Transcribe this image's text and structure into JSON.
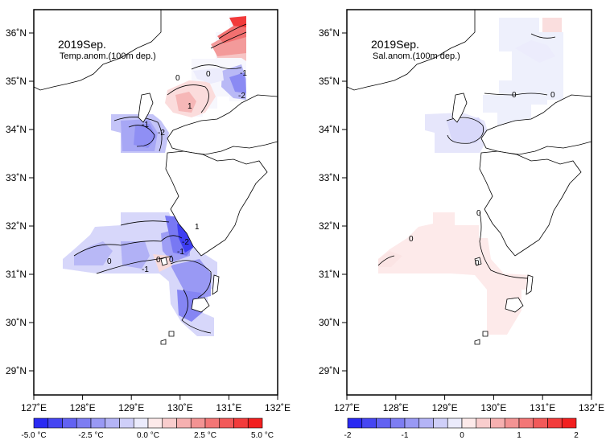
{
  "panels": [
    {
      "id": "temp",
      "title": "2019Sep.",
      "subtitle": "Temp.anom.(100m dep.)",
      "x_ticks": [
        "127˚E",
        "128˚E",
        "129˚E",
        "130˚E",
        "131˚E",
        "132˚E"
      ],
      "y_ticks": [
        "29˚N",
        "30˚N",
        "31˚N",
        "32˚N",
        "33˚N",
        "34˚N",
        "35˚N",
        "36˚N"
      ],
      "contour_labels": [
        "0",
        "0",
        "-1",
        "-2",
        "1",
        "-1",
        "-2",
        "1",
        "0",
        "0",
        "-1",
        "-2",
        "-1",
        "0"
      ],
      "colorbar": {
        "colors": [
          "#2a2af2",
          "#4646f2",
          "#6262f2",
          "#7d7df2",
          "#9999f4",
          "#b4b4f6",
          "#cfcff9",
          "#ebebfc",
          "#fdeaea",
          "#f9cdcd",
          "#f6b0b0",
          "#f39393",
          "#f37676",
          "#f25959",
          "#f23c3c",
          "#f21f1f"
        ],
        "labels": [
          "-5.0 °C",
          "-2.5 °C",
          "0.0 °C",
          "2.5 °C",
          "5.0 °C"
        ]
      }
    },
    {
      "id": "sal",
      "title": "2019Sep.",
      "subtitle": "Sal.anom.(100m dep.)",
      "x_ticks": [
        "127˚E",
        "128˚E",
        "129˚E",
        "130˚E",
        "131˚E",
        "132˚E"
      ],
      "y_ticks": [
        "29˚N",
        "30˚N",
        "31˚N",
        "32˚N",
        "33˚N",
        "34˚N",
        "35˚N",
        "36˚N"
      ],
      "contour_labels": [
        "0",
        "0",
        "0",
        "0",
        "0"
      ],
      "colorbar": {
        "colors": [
          "#2a2af2",
          "#4646f2",
          "#6262f2",
          "#7d7df2",
          "#9999f4",
          "#b4b4f6",
          "#cfcff9",
          "#ebebfc",
          "#fdeaea",
          "#f9cdcd",
          "#f6b0b0",
          "#f39393",
          "#f37676",
          "#f25959",
          "#f23c3c",
          "#f21f1f"
        ],
        "labels": [
          "-2",
          "-1",
          "0",
          "1",
          "2"
        ]
      }
    }
  ],
  "colors": {
    "frame": "#000000",
    "coast": "#000000",
    "land": "#ffffff"
  }
}
